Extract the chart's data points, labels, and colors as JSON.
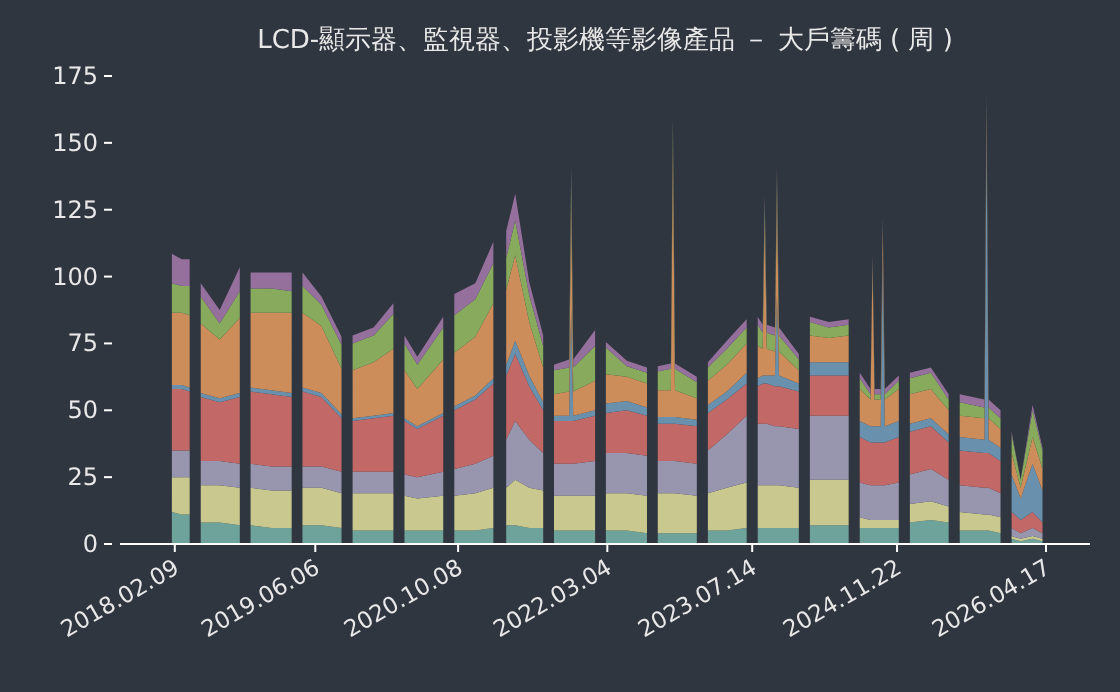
{
  "chart_data": {
    "type": "area",
    "title": "LCD-顯示器、監視器、投影機等影像產品 － 大戶籌碼 ( 周 )",
    "stacked": true,
    "x": [
      "2018-01-30",
      "2018-03-05",
      "2018-04-01",
      "2018-04-22",
      "2018-05-09",
      "2018-07-13",
      "2018-09-20",
      "2018-10-10",
      "2018-10-27",
      "2019-01-07",
      "2019-03-17",
      "2019-04-03",
      "2019-04-23",
      "2019-06-27",
      "2019-09-04",
      "2019-09-24",
      "2019-10-12",
      "2019-12-23",
      "2020-02-29",
      "2020-03-21",
      "2020-04-07",
      "2020-05-21",
      "2020-08-18",
      "2020-09-08",
      "2020-09-25",
      "2020-12-06",
      "2021-02-06",
      "2021-03-02",
      "2021-03-22",
      "2021-04-22",
      "2021-06-09",
      "2021-07-27",
      "2021-08-16",
      "2021-09-02",
      "2021-10-24",
      "2021-10-31",
      "2021-11-07",
      "2022-01-21",
      "2022-02-10",
      "2022-02-27",
      "2022-05-10",
      "2022-07-18",
      "2022-08-07",
      "2022-08-24",
      "2022-10-08",
      "2022-10-15",
      "2022-10-22",
      "2023-01-05",
      "2023-01-26",
      "2023-02-12",
      "2023-04-18",
      "2023-06-25",
      "2023-07-16",
      "2023-08-02",
      "2023-08-19",
      "2023-08-26",
      "2023-09-02",
      "2023-09-30",
      "2023-10-07",
      "2023-10-14",
      "2023-12-21",
      "2024-01-11",
      "2024-01-28",
      "2024-04-02",
      "2024-06-09",
      "2024-06-30",
      "2024-07-17",
      "2024-08-23",
      "2024-08-30",
      "2024-09-06",
      "2024-09-27",
      "2024-10-04",
      "2024-10-11",
      "2024-11-28",
      "2024-12-19",
      "2025-01-05",
      "2025-03-18",
      "2025-05-18",
      "2025-06-08",
      "2025-06-25",
      "2025-09-18",
      "2025-09-25",
      "2025-10-02",
      "2025-11-12",
      "2025-12-03",
      "2025-12-20",
      "2026-01-20",
      "2026-03-02",
      "2026-04-05"
    ],
    "series": [
      {
        "color": "#6ea39b",
        "values": [
          12,
          11,
          11,
          null,
          8,
          8,
          7,
          null,
          7,
          6,
          6,
          null,
          7,
          7,
          6,
          null,
          5,
          5,
          5,
          null,
          5,
          5,
          5,
          null,
          5,
          5,
          6,
          null,
          7,
          7,
          6,
          6,
          null,
          5,
          5,
          5,
          5,
          5,
          null,
          5,
          5,
          4,
          null,
          4,
          4,
          4,
          4,
          4,
          null,
          5,
          5,
          6,
          null,
          6,
          6,
          6,
          6,
          6,
          6,
          6,
          6,
          null,
          7,
          7,
          7,
          null,
          6,
          6,
          6,
          6,
          6,
          6,
          6,
          6,
          null,
          8,
          9,
          8,
          null,
          5,
          5,
          5,
          5,
          4,
          null,
          2,
          1,
          2,
          1
        ]
      },
      {
        "color": "#c9c88e",
        "values": [
          13,
          14,
          14,
          null,
          14,
          14,
          14,
          null,
          14,
          14,
          14,
          null,
          14,
          14,
          13,
          null,
          14,
          14,
          14,
          null,
          13,
          12,
          13,
          null,
          13,
          14,
          15,
          null,
          14,
          17,
          15,
          14,
          null,
          13,
          13,
          13,
          13,
          13,
          null,
          14,
          14,
          14,
          null,
          15,
          15,
          15,
          15,
          14,
          null,
          14,
          16,
          17,
          null,
          16,
          16,
          16,
          16,
          16,
          16,
          16,
          15,
          null,
          17,
          17,
          17,
          null,
          4,
          3,
          3,
          3,
          3,
          3,
          3,
          3,
          null,
          7,
          7,
          6,
          null,
          7,
          6,
          6,
          6,
          6,
          null,
          1,
          1,
          1,
          1
        ]
      },
      {
        "color": "#9896ae",
        "values": [
          10,
          10,
          10,
          null,
          9,
          9,
          9,
          null,
          9,
          9,
          9,
          null,
          8,
          8,
          8,
          null,
          8,
          8,
          8,
          null,
          8,
          8,
          9,
          null,
          10,
          11,
          12,
          null,
          18,
          22,
          18,
          14,
          null,
          12,
          12,
          12,
          12,
          13,
          null,
          15,
          15,
          15,
          null,
          12,
          12,
          12,
          12,
          12,
          null,
          16,
          20,
          25,
          null,
          23,
          23,
          23,
          23,
          22,
          22,
          22,
          22,
          null,
          24,
          24,
          24,
          null,
          13,
          13,
          13,
          13,
          13,
          13,
          13,
          14,
          null,
          11,
          12,
          10,
          null,
          10,
          10,
          10,
          10,
          9,
          null,
          3,
          2,
          3,
          2
        ]
      },
      {
        "color": "#c26866",
        "values": [
          23,
          23,
          22,
          null,
          24,
          22,
          25,
          null,
          27,
          27,
          26,
          null,
          28,
          26,
          20,
          null,
          19,
          20,
          21,
          null,
          20,
          18,
          21,
          null,
          22,
          24,
          27,
          null,
          24,
          25,
          20,
          16,
          null,
          16,
          16,
          16,
          16,
          17,
          null,
          15,
          16,
          15,
          null,
          14,
          14,
          14,
          14,
          14,
          null,
          14,
          13,
          12,
          null,
          14,
          15,
          15,
          15,
          15,
          15,
          15,
          14,
          null,
          15,
          15,
          15,
          null,
          17,
          16,
          16,
          16,
          16,
          16,
          16,
          17,
          null,
          16,
          16,
          14,
          null,
          13,
          13,
          13,
          13,
          12,
          null,
          6,
          5,
          6,
          4
        ]
      },
      {
        "color": "#6990ad",
        "values": [
          1.5,
          1.5,
          1.5,
          null,
          1.5,
          1.5,
          1.5,
          null,
          1.5,
          1.5,
          1.5,
          null,
          1.5,
          1.5,
          1.5,
          null,
          1,
          1,
          1,
          null,
          1,
          1,
          1,
          null,
          1.5,
          1.5,
          2,
          null,
          4,
          5,
          4,
          3,
          null,
          2,
          2,
          42,
          2,
          2,
          null,
          3.5,
          3.5,
          3,
          null,
          2.5,
          2.5,
          2.5,
          2.5,
          2.5,
          null,
          3,
          3,
          4,
          null,
          3,
          3,
          3,
          3,
          4,
          34,
          4,
          3,
          null,
          5,
          5,
          5,
          null,
          6,
          6,
          6,
          6,
          6,
          70,
          6,
          6,
          null,
          3,
          3,
          3,
          null,
          5,
          5,
          119,
          5,
          5,
          null,
          14,
          8,
          18,
          12
        ]
      },
      {
        "color": "#cc8d5b",
        "values": [
          27,
          27,
          27,
          null,
          26,
          22,
          28,
          null,
          28,
          29,
          30,
          null,
          28,
          25,
          17,
          null,
          18,
          20,
          24,
          null,
          18,
          14,
          20,
          null,
          20,
          22,
          28,
          null,
          28,
          32,
          20,
          13,
          null,
          8,
          9,
          41,
          9,
          11,
          null,
          11,
          9,
          9,
          null,
          10,
          10,
          102,
          10,
          8,
          null,
          9,
          10,
          11,
          null,
          12,
          10,
          58,
          10,
          9,
          39,
          9,
          5,
          null,
          10,
          9,
          10,
          null,
          12,
          10,
          60,
          10,
          10,
          10,
          10,
          12,
          null,
          11,
          11,
          9,
          null,
          8,
          8,
          8,
          8,
          7,
          null,
          8,
          4,
          10,
          8
        ]
      },
      {
        "color": "#87aa5c",
        "values": [
          11,
          10,
          11,
          null,
          10,
          6,
          10,
          null,
          9,
          9,
          8,
          null,
          10,
          8,
          9,
          null,
          10,
          10,
          13,
          null,
          10,
          9,
          12,
          null,
          14,
          14,
          15,
          null,
          12,
          13,
          10,
          8,
          null,
          9,
          9,
          9,
          9,
          13,
          null,
          10,
          4,
          4,
          null,
          7,
          8,
          8,
          8,
          6,
          null,
          5,
          6,
          6,
          null,
          8,
          6,
          6,
          6,
          6,
          6,
          6,
          4,
          null,
          5,
          4,
          4,
          null,
          4,
          2,
          2,
          2,
          2,
          2,
          2,
          3,
          null,
          6,
          6,
          4,
          null,
          5,
          4,
          4,
          4,
          4,
          null,
          7,
          3,
          10,
          7
        ]
      },
      {
        "color": "#95709d",
        "values": [
          11,
          10,
          10,
          null,
          5,
          5,
          9,
          null,
          6,
          6,
          7,
          null,
          5,
          3,
          3,
          null,
          3,
          3,
          4,
          null,
          3,
          3,
          4,
          null,
          8,
          6,
          8,
          null,
          10,
          10,
          5,
          4,
          null,
          2,
          3,
          3,
          3,
          6,
          null,
          2,
          2,
          2,
          null,
          2,
          2,
          2,
          2,
          2,
          null,
          2,
          3,
          3,
          null,
          3,
          3,
          3,
          3,
          3,
          3,
          3,
          2,
          null,
          2,
          2,
          2,
          null,
          2,
          2,
          2,
          2,
          2,
          2,
          2,
          2,
          null,
          2,
          2,
          2,
          null,
          3,
          3,
          3,
          3,
          3,
          null,
          1,
          0,
          2,
          1
        ]
      }
    ],
    "xlim": [
      "2017-08-05",
      "2026-09-15"
    ],
    "xticks": [
      {
        "value": "2018-02-09",
        "label": "2018.02.09"
      },
      {
        "value": "2019-06-06",
        "label": "2019.06.06"
      },
      {
        "value": "2020-10-08",
        "label": "2020.10.08"
      },
      {
        "value": "2022-03-04",
        "label": "2022.03.04"
      },
      {
        "value": "2023-07-14",
        "label": "2023.07.14"
      },
      {
        "value": "2024-11-22",
        "label": "2024.11.22"
      },
      {
        "value": "2026-04-17",
        "label": "2026.04.17"
      }
    ],
    "ylim": [
      0,
      175
    ],
    "yticks": [
      0,
      25,
      50,
      75,
      100,
      125,
      150,
      175
    ],
    "grid": false
  }
}
